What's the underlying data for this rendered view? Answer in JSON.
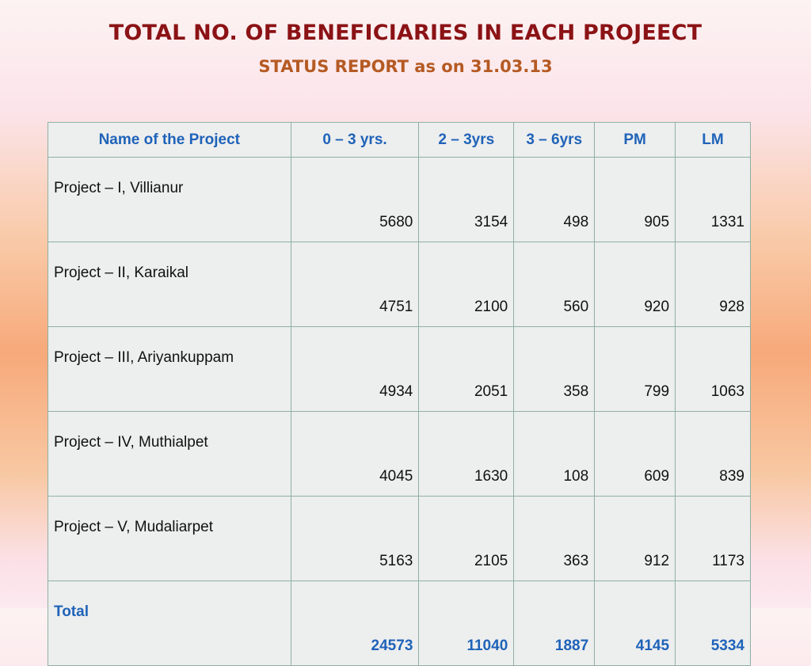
{
  "title": "TOTAL NO. OF BENEFICIARIES IN EACH PROJEECT",
  "subtitle": "STATUS REPORT as on 31.03.13",
  "table": {
    "headers": [
      "Name of the Project",
      "0 – 3 yrs.",
      "2 – 3yrs",
      "3 – 6yrs",
      "PM",
      "LM"
    ],
    "rows": [
      {
        "name": "Project – I, Villianur",
        "values": [
          "5680",
          "3154",
          "498",
          "905",
          "1331"
        ]
      },
      {
        "name": "Project – II, Karaikal",
        "values": [
          "4751",
          "2100",
          "560",
          "920",
          "928"
        ]
      },
      {
        "name": "Project – III, Ariyankuppam",
        "values": [
          "4934",
          "2051",
          "358",
          "799",
          "1063"
        ]
      },
      {
        "name": "Project – IV, Muthialpet",
        "values": [
          "4045",
          "1630",
          "108",
          "609",
          "839"
        ]
      },
      {
        "name": "Project – V, Mudaliarpet",
        "values": [
          "5163",
          "2105",
          "363",
          "912",
          "1173"
        ]
      }
    ],
    "total": {
      "name": "Total",
      "values": [
        "24573",
        "11040",
        "1887",
        "4145",
        "5334"
      ]
    }
  },
  "colors": {
    "title": "#8b1215",
    "subtitle": "#b55a23",
    "header_text": "#1f63b9",
    "total_text": "#1f63b9",
    "table_bg": "#edeeee",
    "border": "#8fb0a5"
  }
}
